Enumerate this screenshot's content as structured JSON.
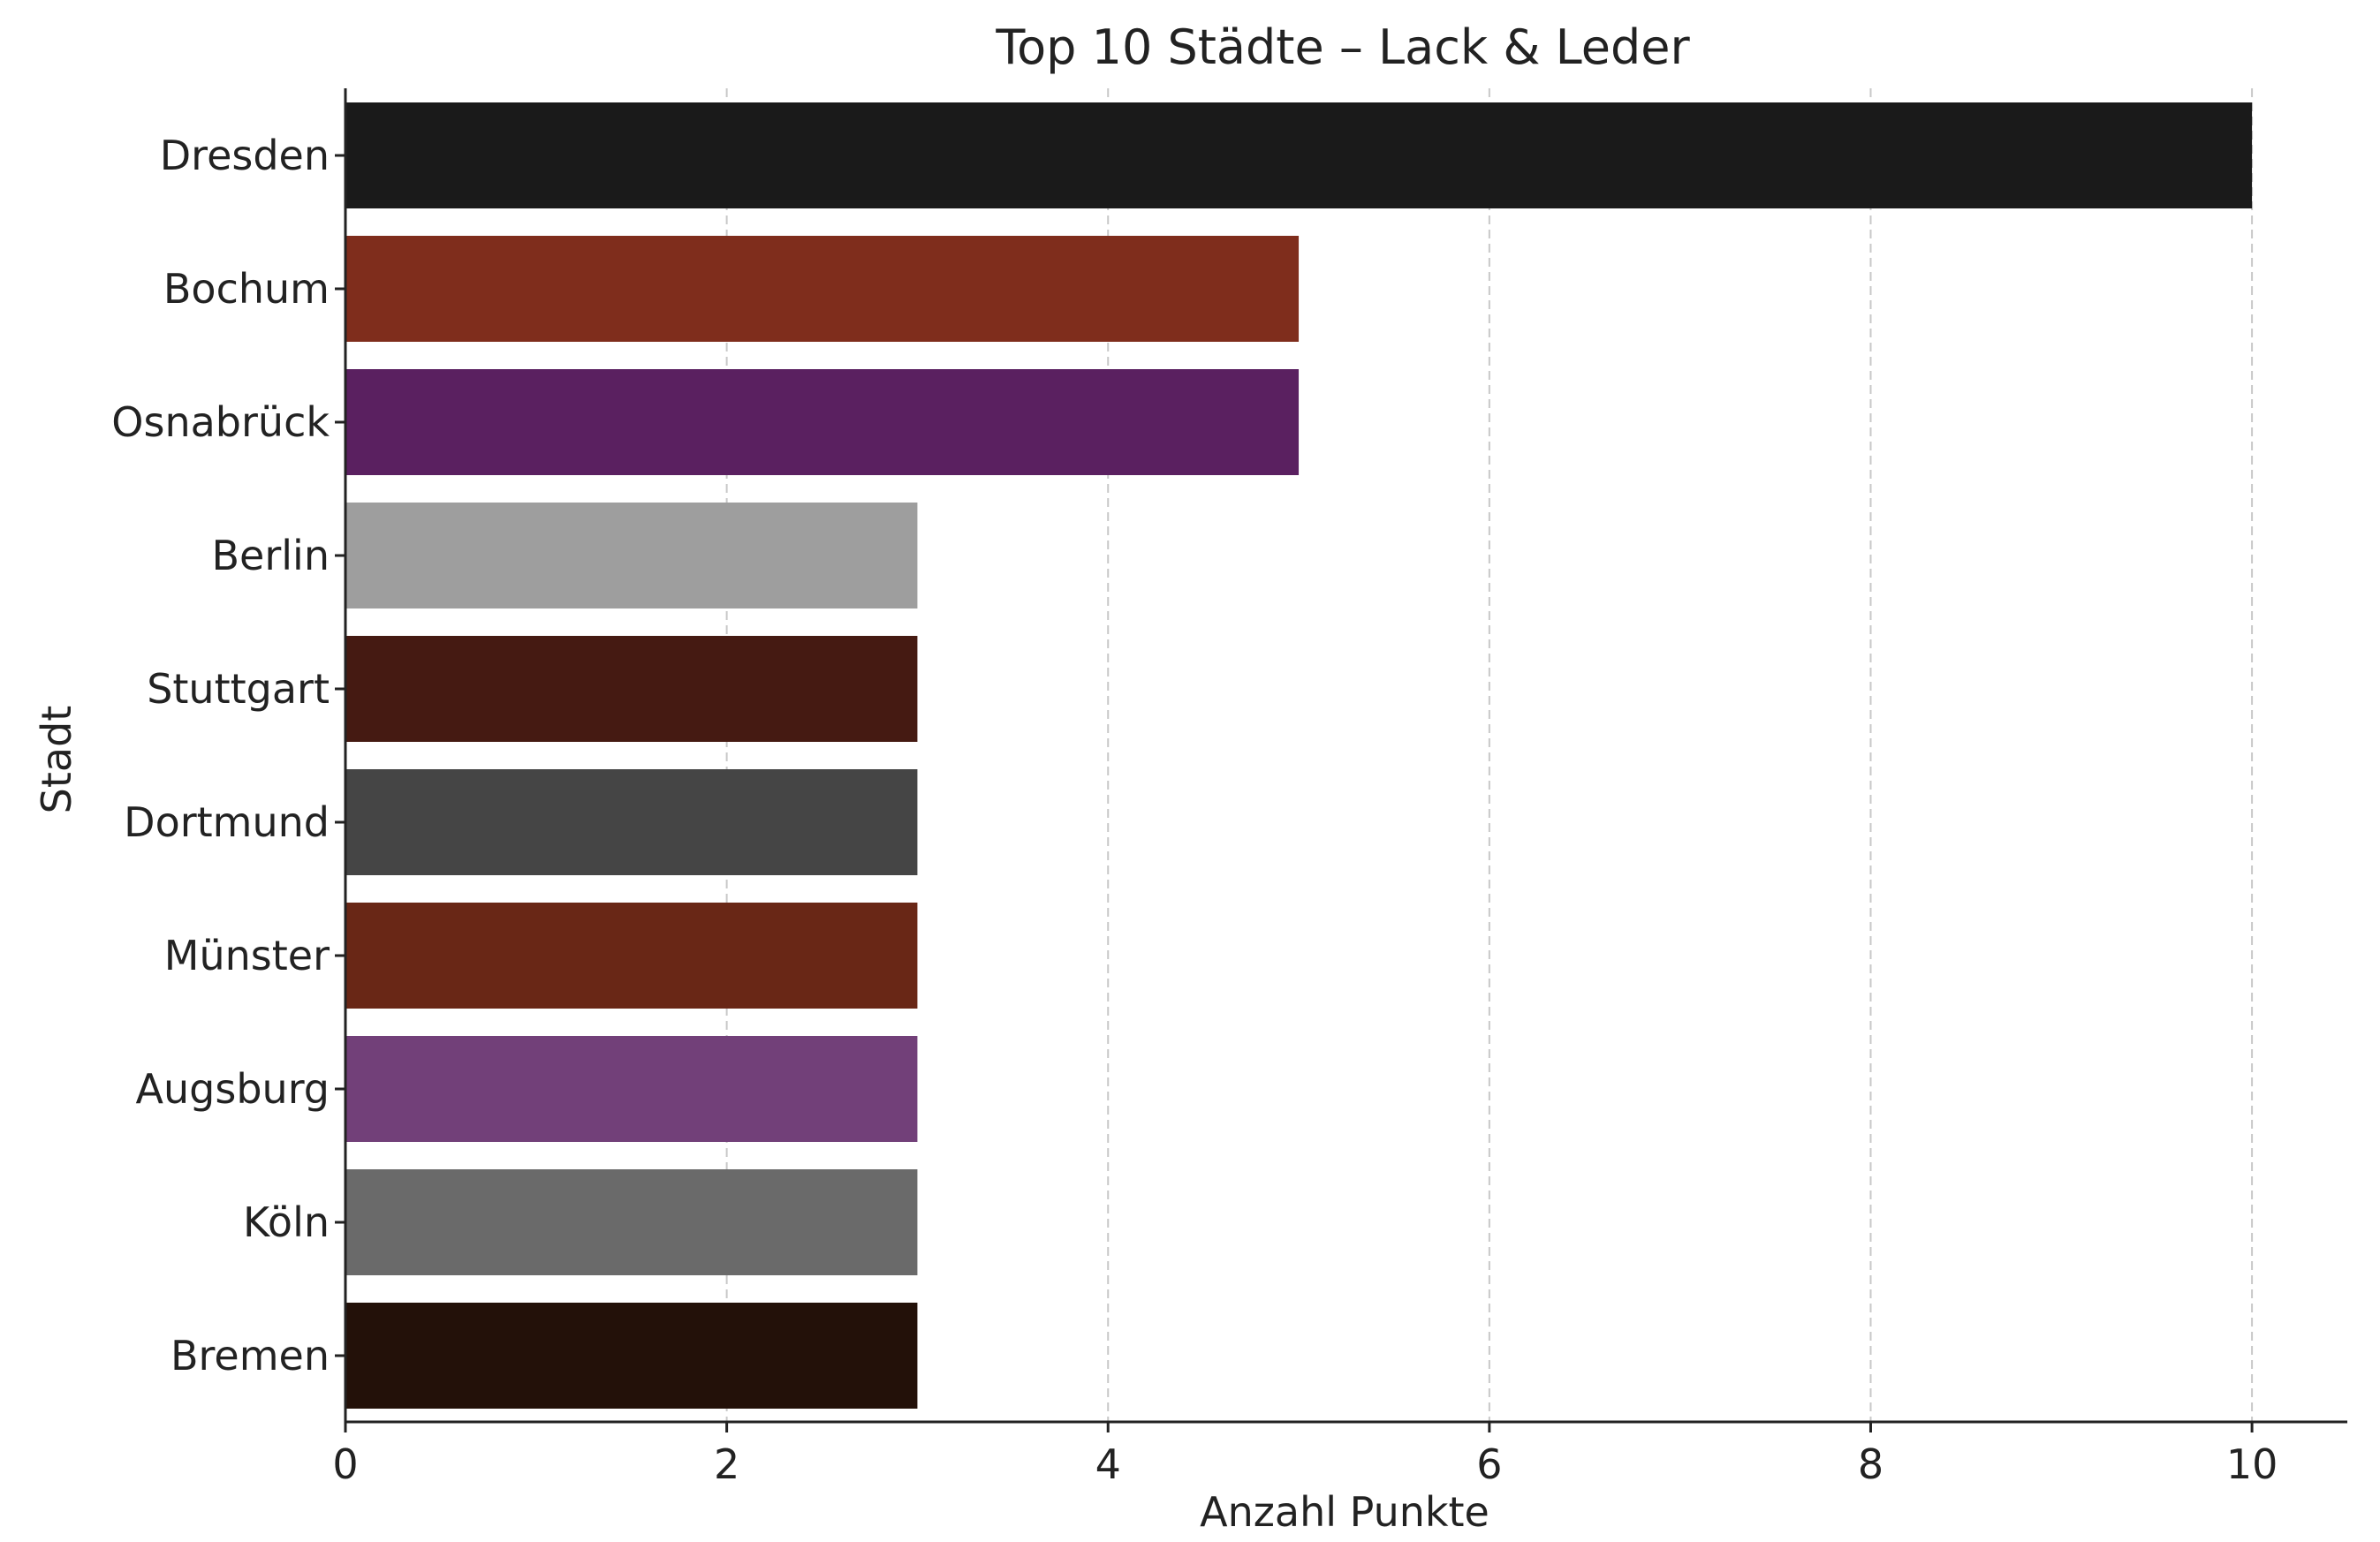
{
  "chart_data": {
    "type": "bar",
    "orientation": "horizontal",
    "title": "Top 10 Städte – Lack & Leder",
    "xlabel": "Anzahl Punkte",
    "ylabel": "Stadt",
    "categories": [
      "Dresden",
      "Bochum",
      "Osnabrück",
      "Berlin",
      "Stuttgart",
      "Dortmund",
      "Münster",
      "Augsburg",
      "Köln",
      "Bremen"
    ],
    "values": [
      10,
      5,
      5,
      3,
      3,
      3,
      3,
      3,
      3,
      3
    ],
    "colors": [
      "#1a1a1a",
      "#7f2d1c",
      "#5a2060",
      "#9e9e9e",
      "#451a12",
      "#454545",
      "#692716",
      "#724079",
      "#6a6a6a",
      "#231109"
    ],
    "xlim": [
      0,
      10.5
    ],
    "xticks": [
      0,
      2,
      4,
      6,
      8,
      10
    ],
    "xtick_labels": [
      "0",
      "2",
      "4",
      "6",
      "8",
      "10"
    ],
    "grid": "x-dashed",
    "legend": "none"
  }
}
